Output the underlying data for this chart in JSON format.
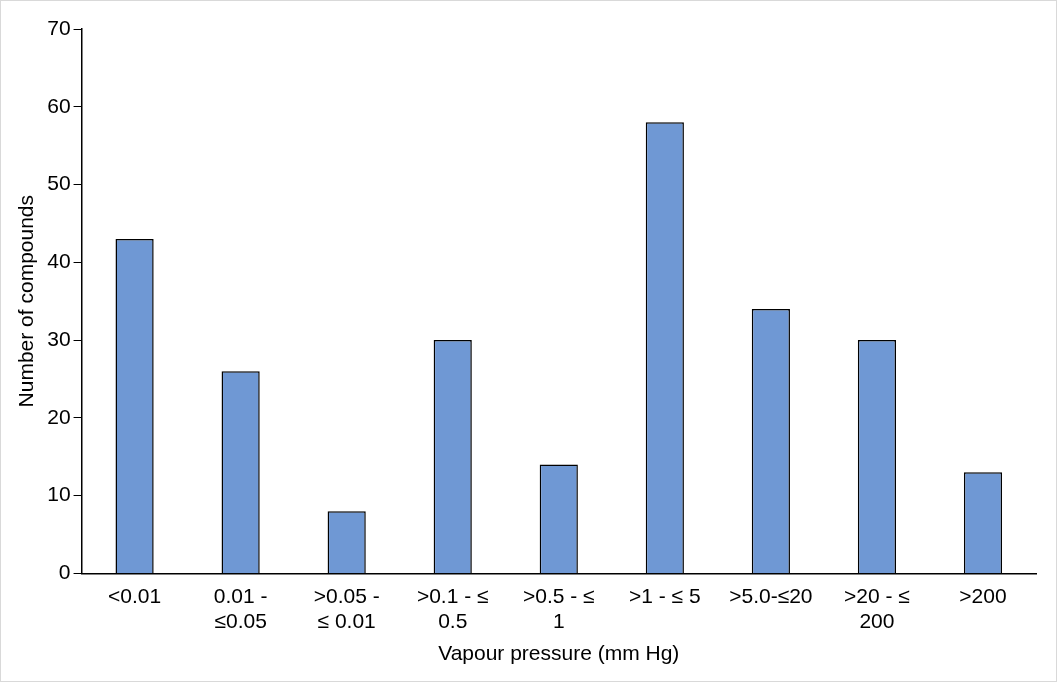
{
  "chart_data": {
    "type": "bar",
    "xlabel": "Vapour pressure (mm Hg)",
    "ylabel": "Number of compounds",
    "categories": [
      "<0.01",
      "0.01 - ≤0.05",
      ">0.05 - ≤ 0.01",
      ">0.1 - ≤ 0.5",
      ">0.5 - ≤ 1",
      ">1 - ≤ 5",
      ">5.0-≤20",
      ">20 - ≤ 200",
      ">200"
    ],
    "values": [
      43,
      26,
      8,
      30,
      14,
      58,
      34,
      30,
      13
    ],
    "color": "#6f98d4",
    "ylim": [
      0,
      70
    ],
    "yticks": [
      0,
      10,
      20,
      30,
      40,
      50,
      60,
      70
    ],
    "grid": false,
    "legend": false
  }
}
